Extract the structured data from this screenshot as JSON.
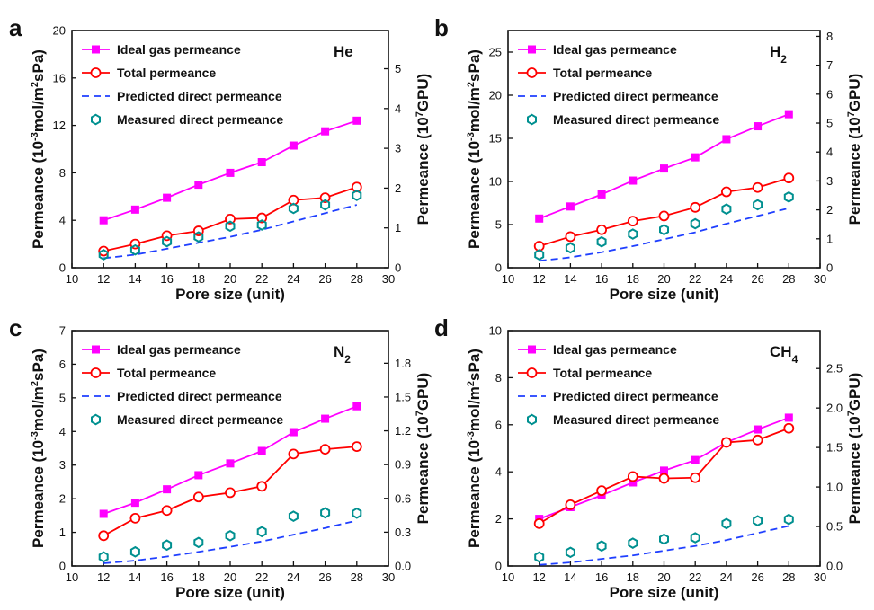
{
  "colors": {
    "ideal": "#ff00ff",
    "total": "#ff0000",
    "predicted": "#1f3fff",
    "measured": "#009090",
    "axis": "#111111"
  },
  "chart_data": [
    {
      "type": "line",
      "panel": "a",
      "gas_label": [
        "He",
        ""
      ],
      "xlabel": "Pore size (unit)",
      "ylabel_left": [
        "Permeance (10",
        "-3",
        "mol/m",
        "2",
        "sPa)"
      ],
      "ylabel_right": [
        "Permeance (10",
        "7",
        "GPU)"
      ],
      "xlim": [
        10,
        30
      ],
      "x_ticks": [
        10,
        12,
        14,
        16,
        18,
        20,
        22,
        24,
        26,
        28,
        30
      ],
      "ylim": [
        0,
        20
      ],
      "y_ticks": [
        0,
        4,
        8,
        12,
        16,
        20
      ],
      "y2lim": [
        0,
        5.96
      ],
      "y2_ticks": [
        0,
        1,
        2,
        3,
        4,
        5
      ],
      "x": [
        12,
        14,
        16,
        18,
        20,
        22,
        24,
        26,
        28
      ],
      "series": [
        {
          "name": "Ideal gas permeance",
          "key": "ideal",
          "values": [
            4.0,
            4.9,
            5.9,
            7.0,
            8.0,
            8.9,
            10.3,
            11.5,
            12.4
          ]
        },
        {
          "name": "Total permeance",
          "key": "total",
          "values": [
            1.4,
            2.0,
            2.7,
            3.1,
            4.1,
            4.2,
            5.7,
            5.9,
            6.8
          ]
        },
        {
          "name": "Predicted direct permeance",
          "key": "predicted",
          "values": [
            0.8,
            1.1,
            1.6,
            2.1,
            2.6,
            3.2,
            3.9,
            4.6,
            5.3
          ]
        },
        {
          "name": "Measured direct permeance",
          "key": "measured",
          "values": [
            1.1,
            1.5,
            2.2,
            2.6,
            3.5,
            3.6,
            5.0,
            5.3,
            6.1
          ]
        }
      ]
    },
    {
      "type": "line",
      "panel": "b",
      "gas_label": [
        "H",
        "2"
      ],
      "xlabel": "Pore size (unit)",
      "ylabel_left": [
        "Permeance (10",
        "-3",
        "mol/m",
        "2",
        "sPa)"
      ],
      "ylabel_right": [
        "Permeance (10",
        "7",
        "GPU)"
      ],
      "xlim": [
        10,
        30
      ],
      "x_ticks": [
        10,
        12,
        14,
        16,
        18,
        20,
        22,
        24,
        26,
        28,
        30
      ],
      "ylim": [
        0,
        27.5
      ],
      "y_ticks": [
        0,
        5,
        10,
        15,
        20,
        25
      ],
      "y2lim": [
        0,
        8.2
      ],
      "y2_ticks": [
        0,
        1,
        2,
        3,
        4,
        5,
        6,
        7,
        8
      ],
      "x": [
        12,
        14,
        16,
        18,
        20,
        22,
        24,
        26,
        28
      ],
      "series": [
        {
          "name": "Ideal gas permeance",
          "key": "ideal",
          "values": [
            5.7,
            7.1,
            8.5,
            10.1,
            11.5,
            12.8,
            14.9,
            16.4,
            17.8
          ]
        },
        {
          "name": "Total permeance",
          "key": "total",
          "values": [
            2.5,
            3.6,
            4.4,
            5.4,
            6.0,
            7.0,
            8.8,
            9.3,
            10.4
          ]
        },
        {
          "name": "Predicted direct permeance",
          "key": "predicted",
          "values": [
            0.8,
            1.2,
            1.8,
            2.5,
            3.3,
            4.1,
            5.1,
            6.0,
            6.9
          ]
        },
        {
          "name": "Measured direct permeance",
          "key": "measured",
          "values": [
            1.5,
            2.3,
            3.0,
            3.9,
            4.4,
            5.1,
            6.8,
            7.3,
            8.2
          ]
        }
      ]
    },
    {
      "type": "line",
      "panel": "c",
      "gas_label": [
        "N",
        "2"
      ],
      "xlabel": "Pore size (unit)",
      "ylabel_left": [
        "Permeance (10",
        "-3",
        "mol/m",
        "2",
        "sPa)"
      ],
      "ylabel_right": [
        "Permeance (10",
        "7",
        "GPU)"
      ],
      "xlim": [
        10,
        30
      ],
      "x_ticks": [
        10,
        12,
        14,
        16,
        18,
        20,
        22,
        24,
        26,
        28,
        30
      ],
      "ylim": [
        0,
        7
      ],
      "y_ticks": [
        0,
        1,
        2,
        3,
        4,
        5,
        6,
        7
      ],
      "y2lim": [
        0,
        2.09
      ],
      "y2_ticks": [
        0.0,
        0.3,
        0.6,
        0.9,
        1.2,
        1.5,
        1.8
      ],
      "x": [
        12,
        14,
        16,
        18,
        20,
        22,
        24,
        26,
        28
      ],
      "series": [
        {
          "name": "Ideal gas permeance",
          "key": "ideal",
          "values": [
            1.55,
            1.88,
            2.28,
            2.7,
            3.05,
            3.42,
            3.98,
            4.38,
            4.75
          ]
        },
        {
          "name": "Total permeance",
          "key": "total",
          "values": [
            0.9,
            1.42,
            1.65,
            2.05,
            2.18,
            2.37,
            3.33,
            3.47,
            3.55
          ]
        },
        {
          "name": "Predicted direct permeance",
          "key": "predicted",
          "values": [
            0.08,
            0.16,
            0.28,
            0.42,
            0.57,
            0.73,
            0.93,
            1.13,
            1.35
          ]
        },
        {
          "name": "Measured direct permeance",
          "key": "measured",
          "values": [
            0.27,
            0.42,
            0.62,
            0.7,
            0.9,
            1.02,
            1.48,
            1.58,
            1.57
          ]
        }
      ]
    },
    {
      "type": "line",
      "panel": "d",
      "gas_label": [
        "CH",
        "4"
      ],
      "xlabel": "Pore size (unit)",
      "ylabel_left": [
        "Permeance (10",
        "-3",
        "mol/m",
        "2",
        "sPa)"
      ],
      "ylabel_right": [
        "Permeance (10",
        "7",
        "GPU)"
      ],
      "xlim": [
        10,
        30
      ],
      "x_ticks": [
        10,
        12,
        14,
        16,
        18,
        20,
        22,
        24,
        26,
        28,
        30
      ],
      "ylim": [
        0,
        10
      ],
      "y_ticks": [
        0,
        2,
        4,
        6,
        8,
        10
      ],
      "y2lim": [
        0,
        2.98
      ],
      "y2_ticks": [
        0.0,
        0.5,
        1.0,
        1.5,
        2.0,
        2.5
      ],
      "x": [
        12,
        14,
        16,
        18,
        20,
        22,
        24,
        26,
        28
      ],
      "series": [
        {
          "name": "Ideal gas permeance",
          "key": "ideal",
          "values": [
            2.0,
            2.5,
            3.0,
            3.55,
            4.05,
            4.5,
            5.25,
            5.8,
            6.3
          ]
        },
        {
          "name": "Total permeance",
          "key": "total",
          "values": [
            1.8,
            2.6,
            3.2,
            3.8,
            3.72,
            3.75,
            5.25,
            5.35,
            5.85
          ]
        },
        {
          "name": "Predicted direct permeance",
          "key": "predicted",
          "values": [
            0.05,
            0.15,
            0.3,
            0.45,
            0.65,
            0.85,
            1.1,
            1.4,
            1.7
          ]
        },
        {
          "name": "Measured direct permeance",
          "key": "measured",
          "values": [
            0.38,
            0.58,
            0.85,
            0.97,
            1.14,
            1.2,
            1.8,
            1.92,
            1.98
          ]
        }
      ]
    }
  ]
}
